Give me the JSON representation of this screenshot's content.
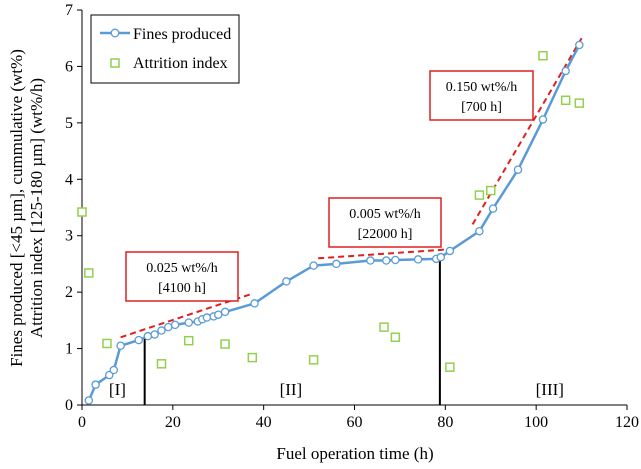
{
  "chart_data": {
    "type": "scatter",
    "xlabel": "Fuel operation time (h)",
    "ylabel_lines": [
      "Fines produced [<45 µm], cummulative (wt%)",
      "Attrition index [125-180 µm] (wt%/h)"
    ],
    "xlim": [
      0,
      120
    ],
    "ylim": [
      0,
      7
    ],
    "x_ticks": [
      0,
      20,
      40,
      60,
      80,
      100,
      120
    ],
    "y_ticks": [
      0,
      1,
      2,
      3,
      4,
      5,
      6,
      7
    ],
    "grid": false,
    "legend_position": "top-left",
    "colors": {
      "fines": "#5b9bd5",
      "attrition": "#92d050",
      "trend": "#e02020",
      "callout_border": "#e02020",
      "marker_line": "#000000"
    },
    "series": [
      {
        "name": "Fines produced",
        "style": "line+open-circle",
        "x": [
          1.5,
          3,
          6,
          7,
          8.5,
          12.5,
          14.5,
          16,
          17.5,
          19,
          20.5,
          23.5,
          25.5,
          26.5,
          27.5,
          29,
          30,
          31.5,
          38,
          45,
          51,
          56,
          63.5,
          67,
          69,
          74,
          78,
          79,
          81,
          87.5,
          90.5,
          96,
          101.5,
          106.5,
          109.5
        ],
        "y": [
          0.08,
          0.36,
          0.53,
          0.62,
          1.05,
          1.15,
          1.22,
          1.25,
          1.32,
          1.38,
          1.42,
          1.46,
          1.48,
          1.52,
          1.55,
          1.57,
          1.6,
          1.65,
          1.8,
          2.19,
          2.47,
          2.5,
          2.56,
          2.56,
          2.57,
          2.58,
          2.59,
          2.62,
          2.73,
          3.08,
          3.48,
          4.17,
          5.06,
          5.92,
          6.38
        ]
      },
      {
        "name": "Attrition index",
        "style": "open-square",
        "x": [
          0,
          1.5,
          5.5,
          17.5,
          23.5,
          31.5,
          37.5,
          51,
          66.5,
          69,
          81,
          87.5,
          90,
          101.5,
          106.5,
          109.5
        ],
        "y": [
          3.42,
          2.34,
          1.09,
          0.73,
          1.14,
          1.08,
          0.84,
          0.8,
          1.38,
          1.2,
          0.67,
          3.72,
          3.8,
          6.19,
          5.4,
          5.35
        ]
      }
    ],
    "trend_lines": [
      {
        "x": [
          8.5,
          37
        ],
        "y": [
          1.2,
          1.96
        ]
      },
      {
        "x": [
          52,
          81
        ],
        "y": [
          2.6,
          2.76
        ]
      },
      {
        "x": [
          86,
          110
        ],
        "y": [
          3.2,
          6.5
        ]
      }
    ],
    "callouts": [
      {
        "line1": "0.025 wt%/h",
        "line2": "[4100 h]"
      },
      {
        "line1": "0.005 wt%/h",
        "line2": "[22000 h]"
      },
      {
        "line1": "0.150 wt%/h",
        "line2": "[700 h]"
      }
    ],
    "phase_markers": [
      {
        "x": 13.8,
        "y_top": 1.2
      },
      {
        "x": 78.8,
        "y_top": 2.62
      }
    ],
    "phase_labels": [
      {
        "text": "[I]",
        "x": 7.8
      },
      {
        "text": "[II]",
        "x": 46
      },
      {
        "text": "[III]",
        "x": 103
      }
    ]
  }
}
